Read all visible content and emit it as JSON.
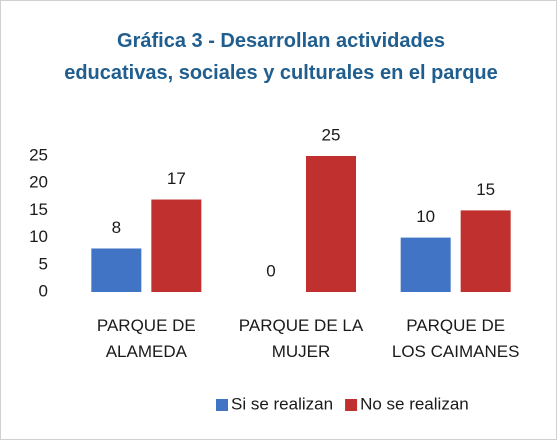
{
  "chart_data": {
    "type": "bar",
    "title": "Gráfica 3 - Desarrollan actividades educativas, sociales y culturales en el parque",
    "categories": [
      "PARQUE DE\nALAMEDA",
      "PARQUE DE LA\nMUJER",
      "PARQUE DE\nLOS CAIMANES"
    ],
    "series": [
      {
        "name": "Si se realizan",
        "color": "#4274c6",
        "values": [
          8,
          0,
          10
        ]
      },
      {
        "name": "No se realizan",
        "color": "#c0302e",
        "values": [
          17,
          25,
          15
        ]
      }
    ],
    "ylim": [
      0,
      25
    ],
    "yticks": [
      0,
      5,
      10,
      15,
      20,
      25
    ],
    "grid": false,
    "legend": "bottom"
  }
}
